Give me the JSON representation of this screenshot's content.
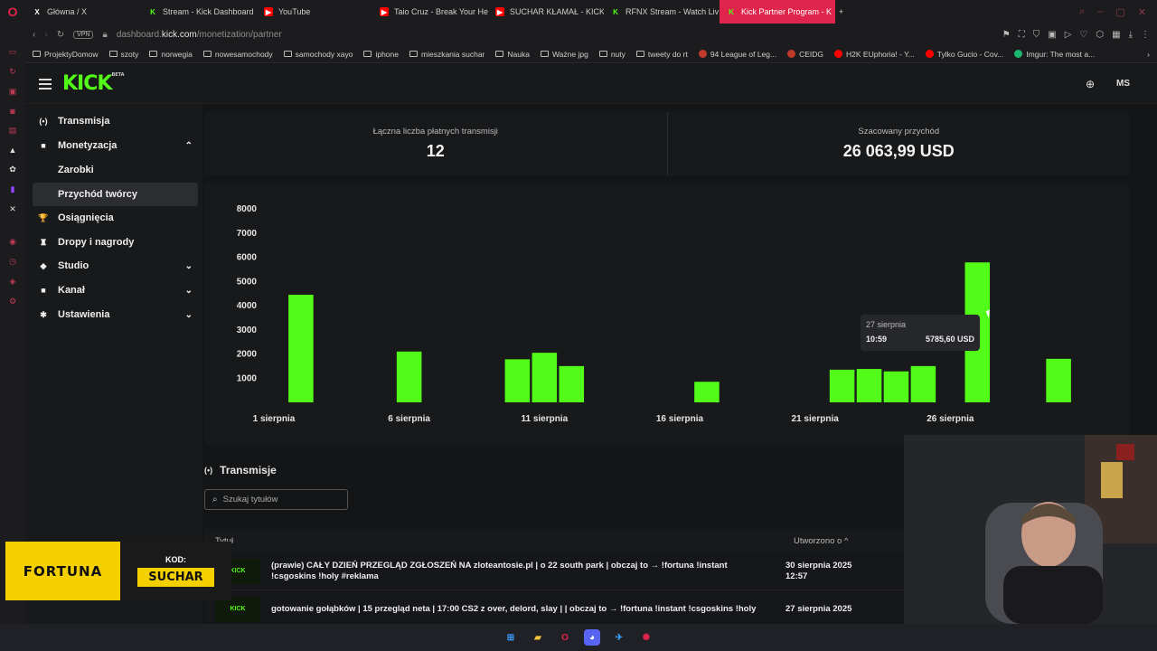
{
  "browser": {
    "tabs": [
      {
        "label": "Główna / X",
        "icon": "x-icon",
        "color": "#000000"
      },
      {
        "label": "Stream - Kick Dashboard",
        "icon": "kick-icon",
        "color": "#53fc18"
      },
      {
        "label": "YouTube",
        "icon": "youtube-icon",
        "color": "#ff0000"
      },
      {
        "label": "Taio Cruz - Break Your He",
        "icon": "youtube-icon",
        "color": "#ff0000"
      },
      {
        "label": "SUCHAR KŁAMAŁ - KICK",
        "icon": "youtube-icon",
        "color": "#ff0000"
      },
      {
        "label": "RFNX Stream - Watch Liv",
        "icon": "kick-icon",
        "color": "#53fc18"
      },
      {
        "label": "Kick Partner Program - K",
        "icon": "kick-icon",
        "color": "#53fc18"
      }
    ],
    "new_tab": "+",
    "vpn": "VPN",
    "url_prefix": "dashboard.",
    "url_domain": "kick.com",
    "url_path": "/monetization/partner",
    "bookmarks": [
      {
        "label": "ProjektyDomow",
        "type": "folder"
      },
      {
        "label": "szoty",
        "type": "folder"
      },
      {
        "label": "norwegia",
        "type": "folder"
      },
      {
        "label": "nowesamochody",
        "type": "folder"
      },
      {
        "label": "samochody xayo",
        "type": "folder"
      },
      {
        "label": "iphone",
        "type": "folder"
      },
      {
        "label": "mieszkania suchar",
        "type": "folder"
      },
      {
        "label": "Nauka",
        "type": "folder"
      },
      {
        "label": "Ważne jpg",
        "type": "folder"
      },
      {
        "label": "nuty",
        "type": "folder"
      },
      {
        "label": "tweety do rt",
        "type": "folder"
      },
      {
        "label": "94 League of Leg...",
        "type": "link",
        "color": "#c0392b"
      },
      {
        "label": "CEIDG",
        "type": "link",
        "color": "#c0392b"
      },
      {
        "label": "H2K EUphoria! - Y...",
        "type": "link",
        "color": "#ff0000"
      },
      {
        "label": "Tylko Gucio - Cov...",
        "type": "link",
        "color": "#ff0000"
      },
      {
        "label": "Imgur: The most a...",
        "type": "link",
        "color": "#1bb76e"
      }
    ]
  },
  "header": {
    "logo": "KICK",
    "logo_badge": "BETA",
    "avatar": "MS"
  },
  "sidebar": {
    "items": [
      {
        "label": "Transmisja",
        "icon": "broadcast-icon",
        "icon_glyph": "(•)",
        "chevron": ""
      },
      {
        "label": "Monetyzacja",
        "icon": "monetization-icon",
        "icon_glyph": "■",
        "chevron": "⌃"
      },
      {
        "label": "Zarobki",
        "icon": "",
        "icon_glyph": "",
        "chevron": ""
      },
      {
        "label": "Przychód twórcy",
        "icon": "",
        "icon_glyph": "",
        "chevron": ""
      },
      {
        "label": "Osiągnięcia",
        "icon": "trophy-icon",
        "icon_glyph": "🏆",
        "chevron": ""
      },
      {
        "label": "Dropy i nagrody",
        "icon": "drops-icon",
        "icon_glyph": "♜",
        "chevron": ""
      },
      {
        "label": "Studio",
        "icon": "studio-icon",
        "icon_glyph": "◆",
        "chevron": "⌄"
      },
      {
        "label": "Kanał",
        "icon": "channel-icon",
        "icon_glyph": "■",
        "chevron": "⌄"
      },
      {
        "label": "Ustawienia",
        "icon": "settings-icon",
        "icon_glyph": "✱",
        "chevron": "⌄"
      }
    ]
  },
  "stats": {
    "paid_streams_label": "Łączna liczba płatnych transmisji",
    "paid_streams_value": "12",
    "revenue_label": "Szacowany przychód",
    "revenue_value": "26 063,99 USD"
  },
  "chart_data": {
    "type": "bar",
    "title": "",
    "xlabel": "",
    "ylabel": "",
    "ylim": [
      0,
      8000
    ],
    "yticks": [
      1000,
      2000,
      3000,
      4000,
      5000,
      6000,
      7000,
      8000
    ],
    "x_range": [
      1,
      31
    ],
    "x_tick_labels": [
      {
        "day": 1,
        "label": "1 sierpnia"
      },
      {
        "day": 6,
        "label": "6 sierpnia"
      },
      {
        "day": 11,
        "label": "11 sierpnia"
      },
      {
        "day": 16,
        "label": "16 sierpnia"
      },
      {
        "day": 21,
        "label": "21 sierpnia"
      },
      {
        "day": 26,
        "label": "26 sierpnia"
      }
    ],
    "bars": [
      {
        "day": 2,
        "value": 4450
      },
      {
        "day": 6,
        "value": 2100
      },
      {
        "day": 10,
        "value": 1780
      },
      {
        "day": 11,
        "value": 2050
      },
      {
        "day": 12,
        "value": 1500
      },
      {
        "day": 17,
        "value": 850
      },
      {
        "day": 22,
        "value": 1350
      },
      {
        "day": 23,
        "value": 1380
      },
      {
        "day": 24,
        "value": 1280
      },
      {
        "day": 25,
        "value": 1500
      },
      {
        "day": 27,
        "value": 5785.6
      },
      {
        "day": 30,
        "value": 1800
      }
    ],
    "bar_color": "#53fc18",
    "grid": false,
    "tooltip": {
      "date": "27 sierpnia",
      "time": "10:59",
      "value": "5785,60 USD"
    }
  },
  "streams": {
    "section_title": "Transmisje",
    "search_placeholder": "Szukaj tytułów",
    "col_title": "Tytuł",
    "col_created": "Utworzono o ^",
    "rows": [
      {
        "thumb": "KICK",
        "title": "(prawie) CAŁY DZIEŃ PRZEGLĄD ZGŁOSZEŃ NA zloteantosie.pl | o 22 south park | obczaj to → !fortuna !instant !csgoskins !holy #reklama",
        "date": "30 sierpnia 2025",
        "time": "12:57"
      },
      {
        "thumb": "KICK",
        "title": "gotowanie gołąbków | 15 przegląd neta | 17:00 CS2 z over, delord, slay | | obczaj to → !fortuna !instant !csgoskins !holy",
        "date": "27 sierpnia 2025",
        "time": ""
      }
    ]
  },
  "overlay": {
    "brand": "FORTUNA",
    "kod_label": "KOD:",
    "code": "SUCHAR"
  }
}
